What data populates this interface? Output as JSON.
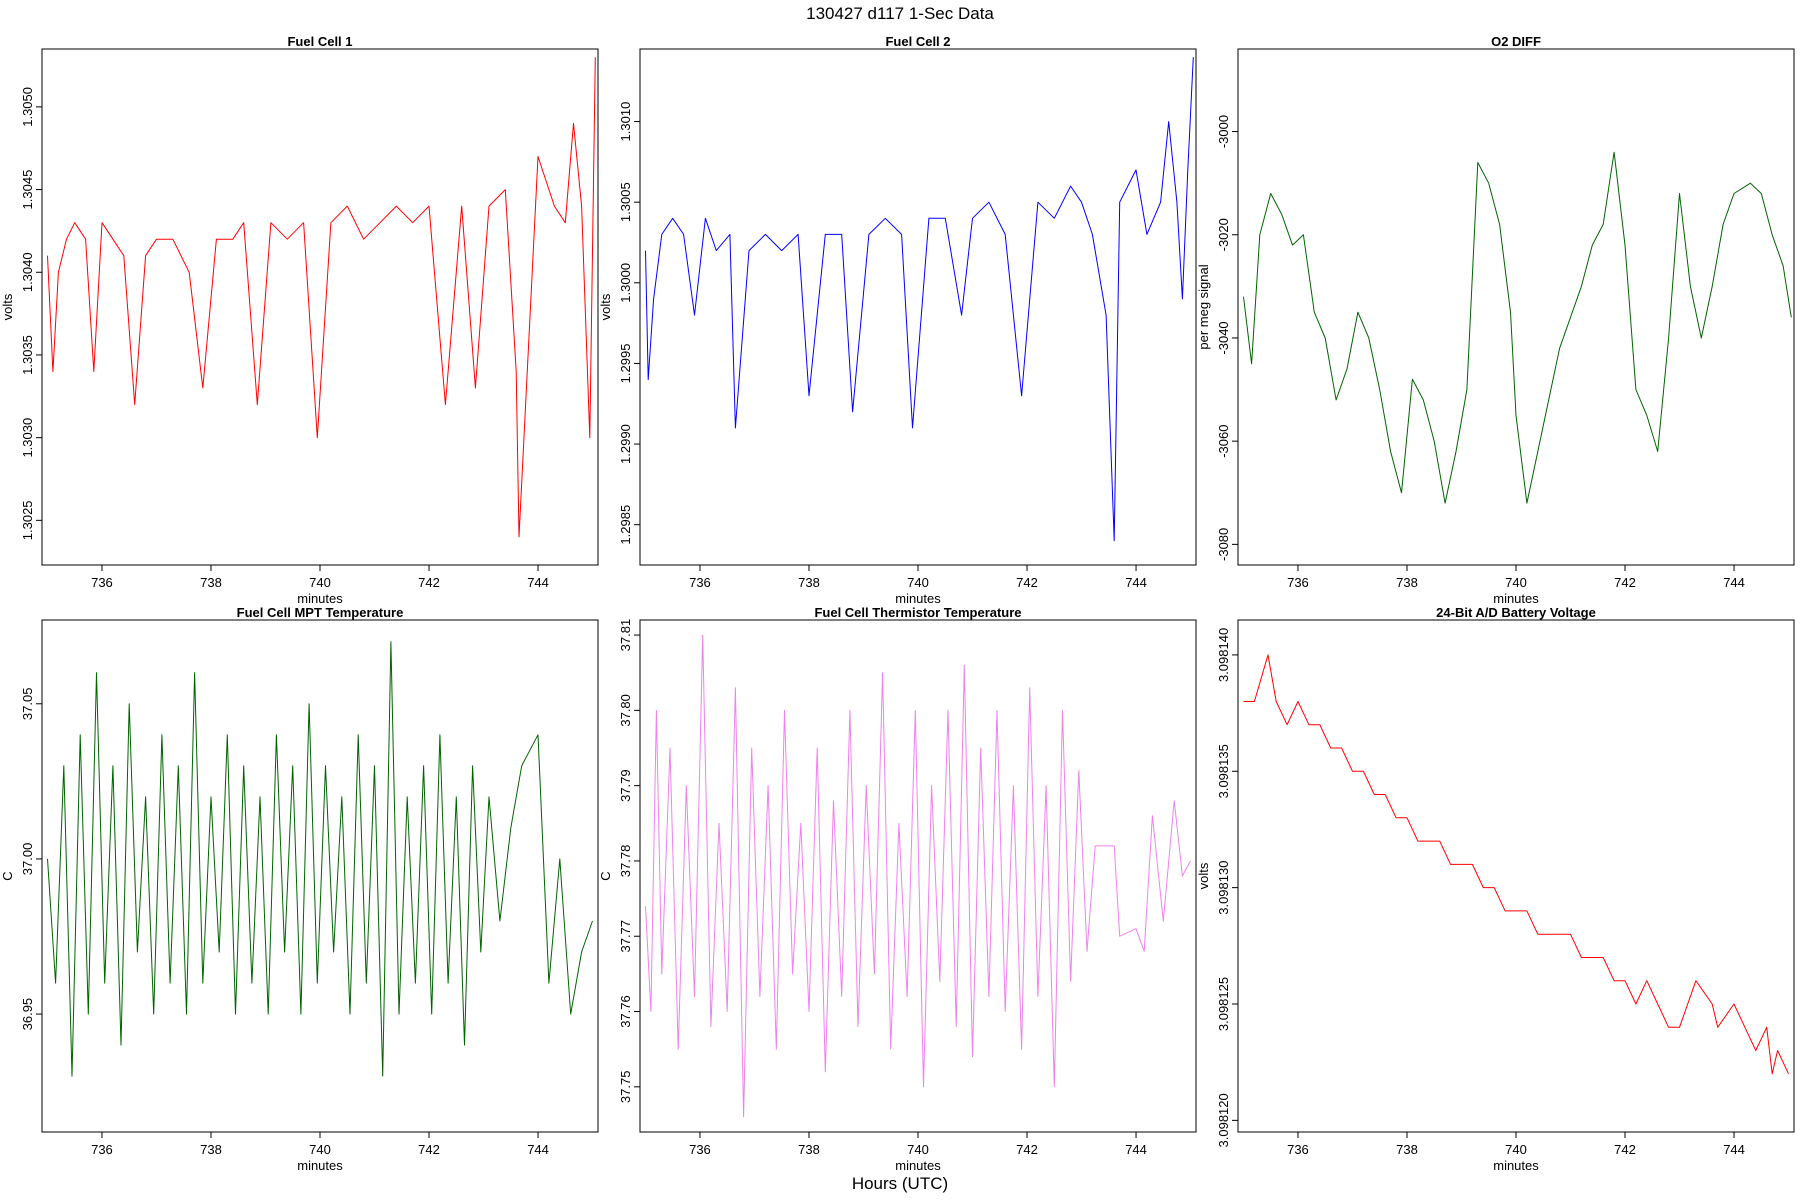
{
  "figure": {
    "title": "130427   d117   1-Sec Data",
    "bottom_label": "Hours (UTC)"
  },
  "chart_data": [
    {
      "type": "line",
      "title": "Fuel Cell 1",
      "xlabel": "minutes",
      "ylabel": "volts",
      "color": "#ff0000",
      "xlim": [
        734.9,
        745.1
      ],
      "ylim": [
        1.30223,
        1.30535
      ],
      "x_ticks": [
        736,
        738,
        740,
        742,
        744
      ],
      "y_ticks": [
        1.3025,
        1.303,
        1.3035,
        1.304,
        1.3045,
        1.305
      ],
      "y_tick_labels": [
        "1.3025",
        "1.3030",
        "1.3035",
        "1.3040",
        "1.3045",
        "1.3050"
      ],
      "x": [
        735.0,
        735.1,
        735.2,
        735.35,
        735.5,
        735.7,
        735.85,
        736.0,
        736.2,
        736.4,
        736.6,
        736.8,
        737.0,
        737.3,
        737.6,
        737.85,
        738.1,
        738.4,
        738.6,
        738.85,
        739.1,
        739.4,
        739.7,
        739.95,
        740.2,
        740.5,
        740.8,
        741.1,
        741.4,
        741.7,
        742.0,
        742.3,
        742.6,
        742.85,
        743.1,
        743.4,
        743.6,
        743.65,
        744.0,
        744.3,
        744.5,
        744.65,
        744.8,
        744.95,
        745.05
      ],
      "y": [
        1.3041,
        1.3034,
        1.304,
        1.3042,
        1.3043,
        1.3042,
        1.3034,
        1.3043,
        1.3042,
        1.3041,
        1.3032,
        1.3041,
        1.3042,
        1.3042,
        1.304,
        1.3033,
        1.3042,
        1.3042,
        1.3043,
        1.3032,
        1.3043,
        1.3042,
        1.3043,
        1.303,
        1.3043,
        1.3044,
        1.3042,
        1.3043,
        1.3044,
        1.3043,
        1.3044,
        1.3032,
        1.3044,
        1.3033,
        1.3044,
        1.3045,
        1.3034,
        1.3024,
        1.3047,
        1.3044,
        1.3043,
        1.3049,
        1.3044,
        1.303,
        1.3053
      ]
    },
    {
      "type": "line",
      "title": "Fuel Cell 2",
      "xlabel": "minutes",
      "ylabel": "volts",
      "color": "#0000ff",
      "xlim": [
        734.9,
        745.1
      ],
      "ylim": [
        1.29825,
        1.30145
      ],
      "x_ticks": [
        736,
        738,
        740,
        742,
        744
      ],
      "y_ticks": [
        1.2985,
        1.299,
        1.2995,
        1.3,
        1.3005,
        1.301
      ],
      "y_tick_labels": [
        "1.2985",
        "1.2990",
        "1.2995",
        "1.3000",
        "1.3005",
        "1.3010"
      ],
      "x": [
        735.0,
        735.05,
        735.15,
        735.3,
        735.5,
        735.7,
        735.9,
        736.1,
        736.3,
        736.55,
        736.65,
        736.9,
        737.2,
        737.5,
        737.8,
        738.0,
        738.3,
        738.6,
        738.8,
        739.1,
        739.4,
        739.7,
        739.9,
        740.2,
        740.5,
        740.8,
        741.0,
        741.3,
        741.6,
        741.9,
        742.2,
        742.5,
        742.8,
        743.0,
        743.2,
        743.45,
        743.6,
        743.7,
        744.0,
        744.2,
        744.45,
        744.6,
        744.75,
        744.85,
        744.95,
        745.05
      ],
      "y": [
        1.3002,
        1.2994,
        1.2999,
        1.3003,
        1.3004,
        1.3003,
        1.2998,
        1.3004,
        1.3002,
        1.3003,
        1.2991,
        1.3002,
        1.3003,
        1.3002,
        1.3003,
        1.2993,
        1.3003,
        1.3003,
        1.2992,
        1.3003,
        1.3004,
        1.3003,
        1.2991,
        1.3004,
        1.3004,
        1.2998,
        1.3004,
        1.3005,
        1.3003,
        1.2993,
        1.3005,
        1.3004,
        1.3006,
        1.3005,
        1.3003,
        1.2998,
        1.2984,
        1.3005,
        1.3007,
        1.3003,
        1.3005,
        1.301,
        1.3005,
        1.2999,
        1.3007,
        1.3014
      ]
    },
    {
      "type": "line",
      "title": "O2 DIFF",
      "xlabel": "minutes",
      "ylabel": "per meg signal",
      "color": "#006400",
      "xlim": [
        734.9,
        745.1
      ],
      "ylim": [
        -3084,
        -2984
      ],
      "x_ticks": [
        736,
        738,
        740,
        742,
        744
      ],
      "y_ticks": [
        -3080,
        -3060,
        -3040,
        -3020,
        -3000
      ],
      "y_tick_labels": [
        "-3080",
        "-3060",
        "-3040",
        "-3020",
        "-3000"
      ],
      "x": [
        735.0,
        735.15,
        735.3,
        735.5,
        735.7,
        735.9,
        736.1,
        736.3,
        736.5,
        736.7,
        736.9,
        737.1,
        737.3,
        737.5,
        737.7,
        737.9,
        738.1,
        738.3,
        738.5,
        738.7,
        738.9,
        739.1,
        739.3,
        739.5,
        739.7,
        739.9,
        740.0,
        740.2,
        740.4,
        740.6,
        740.8,
        741.0,
        741.2,
        741.4,
        741.6,
        741.8,
        742.0,
        742.2,
        742.4,
        742.6,
        742.8,
        743.0,
        743.2,
        743.4,
        743.6,
        743.8,
        744.0,
        744.3,
        744.5,
        744.7,
        744.9,
        745.05
      ],
      "y": [
        -3032,
        -3045,
        -3020,
        -3012,
        -3016,
        -3022,
        -3020,
        -3035,
        -3040,
        -3052,
        -3046,
        -3035,
        -3040,
        -3050,
        -3062,
        -3070,
        -3048,
        -3052,
        -3060,
        -3072,
        -3062,
        -3050,
        -3006,
        -3010,
        -3018,
        -3035,
        -3055,
        -3072,
        -3062,
        -3052,
        -3042,
        -3036,
        -3030,
        -3022,
        -3018,
        -3004,
        -3022,
        -3050,
        -3055,
        -3062,
        -3040,
        -3012,
        -3030,
        -3040,
        -3030,
        -3018,
        -3012,
        -3010,
        -3012,
        -3020,
        -3026,
        -3036
      ]
    },
    {
      "type": "line",
      "title": "Fuel Cell MPT Temperature",
      "xlabel": "minutes",
      "ylabel": "C",
      "color": "#006400",
      "xlim": [
        734.9,
        745.1
      ],
      "ylim": [
        36.912,
        37.077
      ],
      "x_ticks": [
        736,
        738,
        740,
        742,
        744
      ],
      "y_ticks": [
        36.95,
        37.0,
        37.05
      ],
      "y_tick_labels": [
        "36.95",
        "37.00",
        "37.05"
      ],
      "x": [
        735.0,
        735.15,
        735.3,
        735.45,
        735.6,
        735.75,
        735.9,
        736.05,
        736.2,
        736.35,
        736.5,
        736.65,
        736.8,
        736.95,
        737.1,
        737.25,
        737.4,
        737.55,
        737.7,
        737.85,
        738.0,
        738.15,
        738.3,
        738.45,
        738.6,
        738.75,
        738.9,
        739.05,
        739.2,
        739.35,
        739.5,
        739.65,
        739.8,
        739.95,
        740.1,
        740.25,
        740.4,
        740.55,
        740.7,
        740.85,
        741.0,
        741.15,
        741.3,
        741.45,
        741.6,
        741.75,
        741.9,
        742.05,
        742.2,
        742.35,
        742.5,
        742.65,
        742.8,
        742.95,
        743.1,
        743.3,
        743.5,
        743.7,
        744.0,
        744.2,
        744.4,
        744.6,
        744.8,
        745.0
      ],
      "y": [
        37.0,
        36.96,
        37.03,
        36.93,
        37.04,
        36.95,
        37.06,
        36.96,
        37.03,
        36.94,
        37.05,
        36.97,
        37.02,
        36.95,
        37.04,
        36.96,
        37.03,
        36.95,
        37.06,
        36.96,
        37.02,
        36.97,
        37.04,
        36.95,
        37.03,
        36.96,
        37.02,
        36.95,
        37.04,
        36.97,
        37.03,
        36.95,
        37.05,
        36.96,
        37.03,
        36.97,
        37.02,
        36.95,
        37.04,
        36.96,
        37.03,
        36.93,
        37.07,
        36.95,
        37.02,
        36.96,
        37.03,
        36.95,
        37.04,
        36.96,
        37.02,
        36.94,
        37.03,
        36.97,
        37.02,
        36.98,
        37.01,
        37.03,
        37.04,
        36.96,
        37.0,
        36.95,
        36.97,
        36.98
      ]
    },
    {
      "type": "line",
      "title": "Fuel Cell Thermistor Temperature",
      "xlabel": "minutes",
      "ylabel": "C",
      "color": "#ee82ee",
      "xlim": [
        734.9,
        745.1
      ],
      "ylim": [
        37.744,
        37.812
      ],
      "x_ticks": [
        736,
        738,
        740,
        742,
        744
      ],
      "y_ticks": [
        37.75,
        37.76,
        37.77,
        37.78,
        37.79,
        37.8,
        37.81
      ],
      "y_tick_labels": [
        "37.75",
        "37.76",
        "37.77",
        "37.78",
        "37.79",
        "37.80",
        "37.81"
      ],
      "x": [
        735.0,
        735.1,
        735.2,
        735.3,
        735.45,
        735.6,
        735.75,
        735.9,
        736.05,
        736.2,
        736.35,
        736.5,
        736.65,
        736.8,
        736.95,
        737.1,
        737.25,
        737.4,
        737.55,
        737.7,
        737.85,
        738.0,
        738.15,
        738.3,
        738.45,
        738.6,
        738.75,
        738.9,
        739.05,
        739.2,
        739.35,
        739.5,
        739.65,
        739.8,
        739.95,
        740.1,
        740.25,
        740.4,
        740.55,
        740.7,
        740.85,
        741.0,
        741.15,
        741.3,
        741.45,
        741.6,
        741.75,
        741.9,
        742.05,
        742.2,
        742.35,
        742.5,
        742.65,
        742.8,
        742.95,
        743.1,
        743.25,
        743.6,
        743.7,
        744.0,
        744.15,
        744.3,
        744.5,
        744.7,
        744.85,
        745.0
      ],
      "y": [
        37.774,
        37.76,
        37.8,
        37.765,
        37.795,
        37.755,
        37.79,
        37.762,
        37.81,
        37.758,
        37.785,
        37.76,
        37.803,
        37.746,
        37.795,
        37.762,
        37.79,
        37.755,
        37.8,
        37.765,
        37.785,
        37.76,
        37.795,
        37.752,
        37.788,
        37.762,
        37.8,
        37.758,
        37.79,
        37.765,
        37.805,
        37.755,
        37.785,
        37.762,
        37.8,
        37.75,
        37.79,
        37.764,
        37.8,
        37.758,
        37.806,
        37.754,
        37.795,
        37.762,
        37.8,
        37.76,
        37.79,
        37.755,
        37.803,
        37.762,
        37.79,
        37.75,
        37.8,
        37.764,
        37.792,
        37.768,
        37.782,
        37.782,
        37.77,
        37.771,
        37.768,
        37.786,
        37.772,
        37.788,
        37.778,
        37.78
      ]
    },
    {
      "type": "line",
      "title": "24-Bit A/D Battery Voltage",
      "xlabel": "minutes",
      "ylabel": "volts",
      "color": "#ff0000",
      "xlim": [
        734.9,
        745.1
      ],
      "ylim": [
        3.0981195,
        3.0981415
      ],
      "x_ticks": [
        736,
        738,
        740,
        742,
        744
      ],
      "y_ticks": [
        3.09812,
        3.098125,
        3.09813,
        3.098135,
        3.09814
      ],
      "y_tick_labels": [
        "3.098120",
        "3.098125",
        "3.098130",
        "3.098135",
        "3.098140"
      ],
      "x": [
        735.0,
        735.2,
        735.45,
        735.6,
        735.8,
        736.0,
        736.2,
        736.4,
        736.6,
        736.8,
        737.0,
        737.2,
        737.4,
        737.6,
        737.8,
        738.0,
        738.2,
        738.4,
        738.6,
        738.8,
        739.0,
        739.2,
        739.4,
        739.6,
        739.8,
        740.0,
        740.2,
        740.4,
        740.6,
        740.8,
        741.0,
        741.2,
        741.4,
        741.6,
        741.8,
        742.0,
        742.2,
        742.4,
        742.6,
        742.8,
        743.0,
        743.3,
        743.6,
        743.7,
        744.0,
        744.2,
        744.4,
        744.6,
        744.7,
        744.8,
        745.0
      ],
      "y": [
        3.098138,
        3.098138,
        3.09814,
        3.098138,
        3.098137,
        3.098138,
        3.098137,
        3.098137,
        3.098136,
        3.098136,
        3.098135,
        3.098135,
        3.098134,
        3.098134,
        3.098133,
        3.098133,
        3.098132,
        3.098132,
        3.098132,
        3.098131,
        3.098131,
        3.098131,
        3.09813,
        3.09813,
        3.098129,
        3.098129,
        3.098129,
        3.098128,
        3.098128,
        3.098128,
        3.098128,
        3.098127,
        3.098127,
        3.098127,
        3.098126,
        3.098126,
        3.098125,
        3.098126,
        3.098125,
        3.098124,
        3.098124,
        3.098126,
        3.098125,
        3.098124,
        3.098125,
        3.098124,
        3.098123,
        3.098124,
        3.098122,
        3.098123,
        3.098122
      ]
    }
  ]
}
